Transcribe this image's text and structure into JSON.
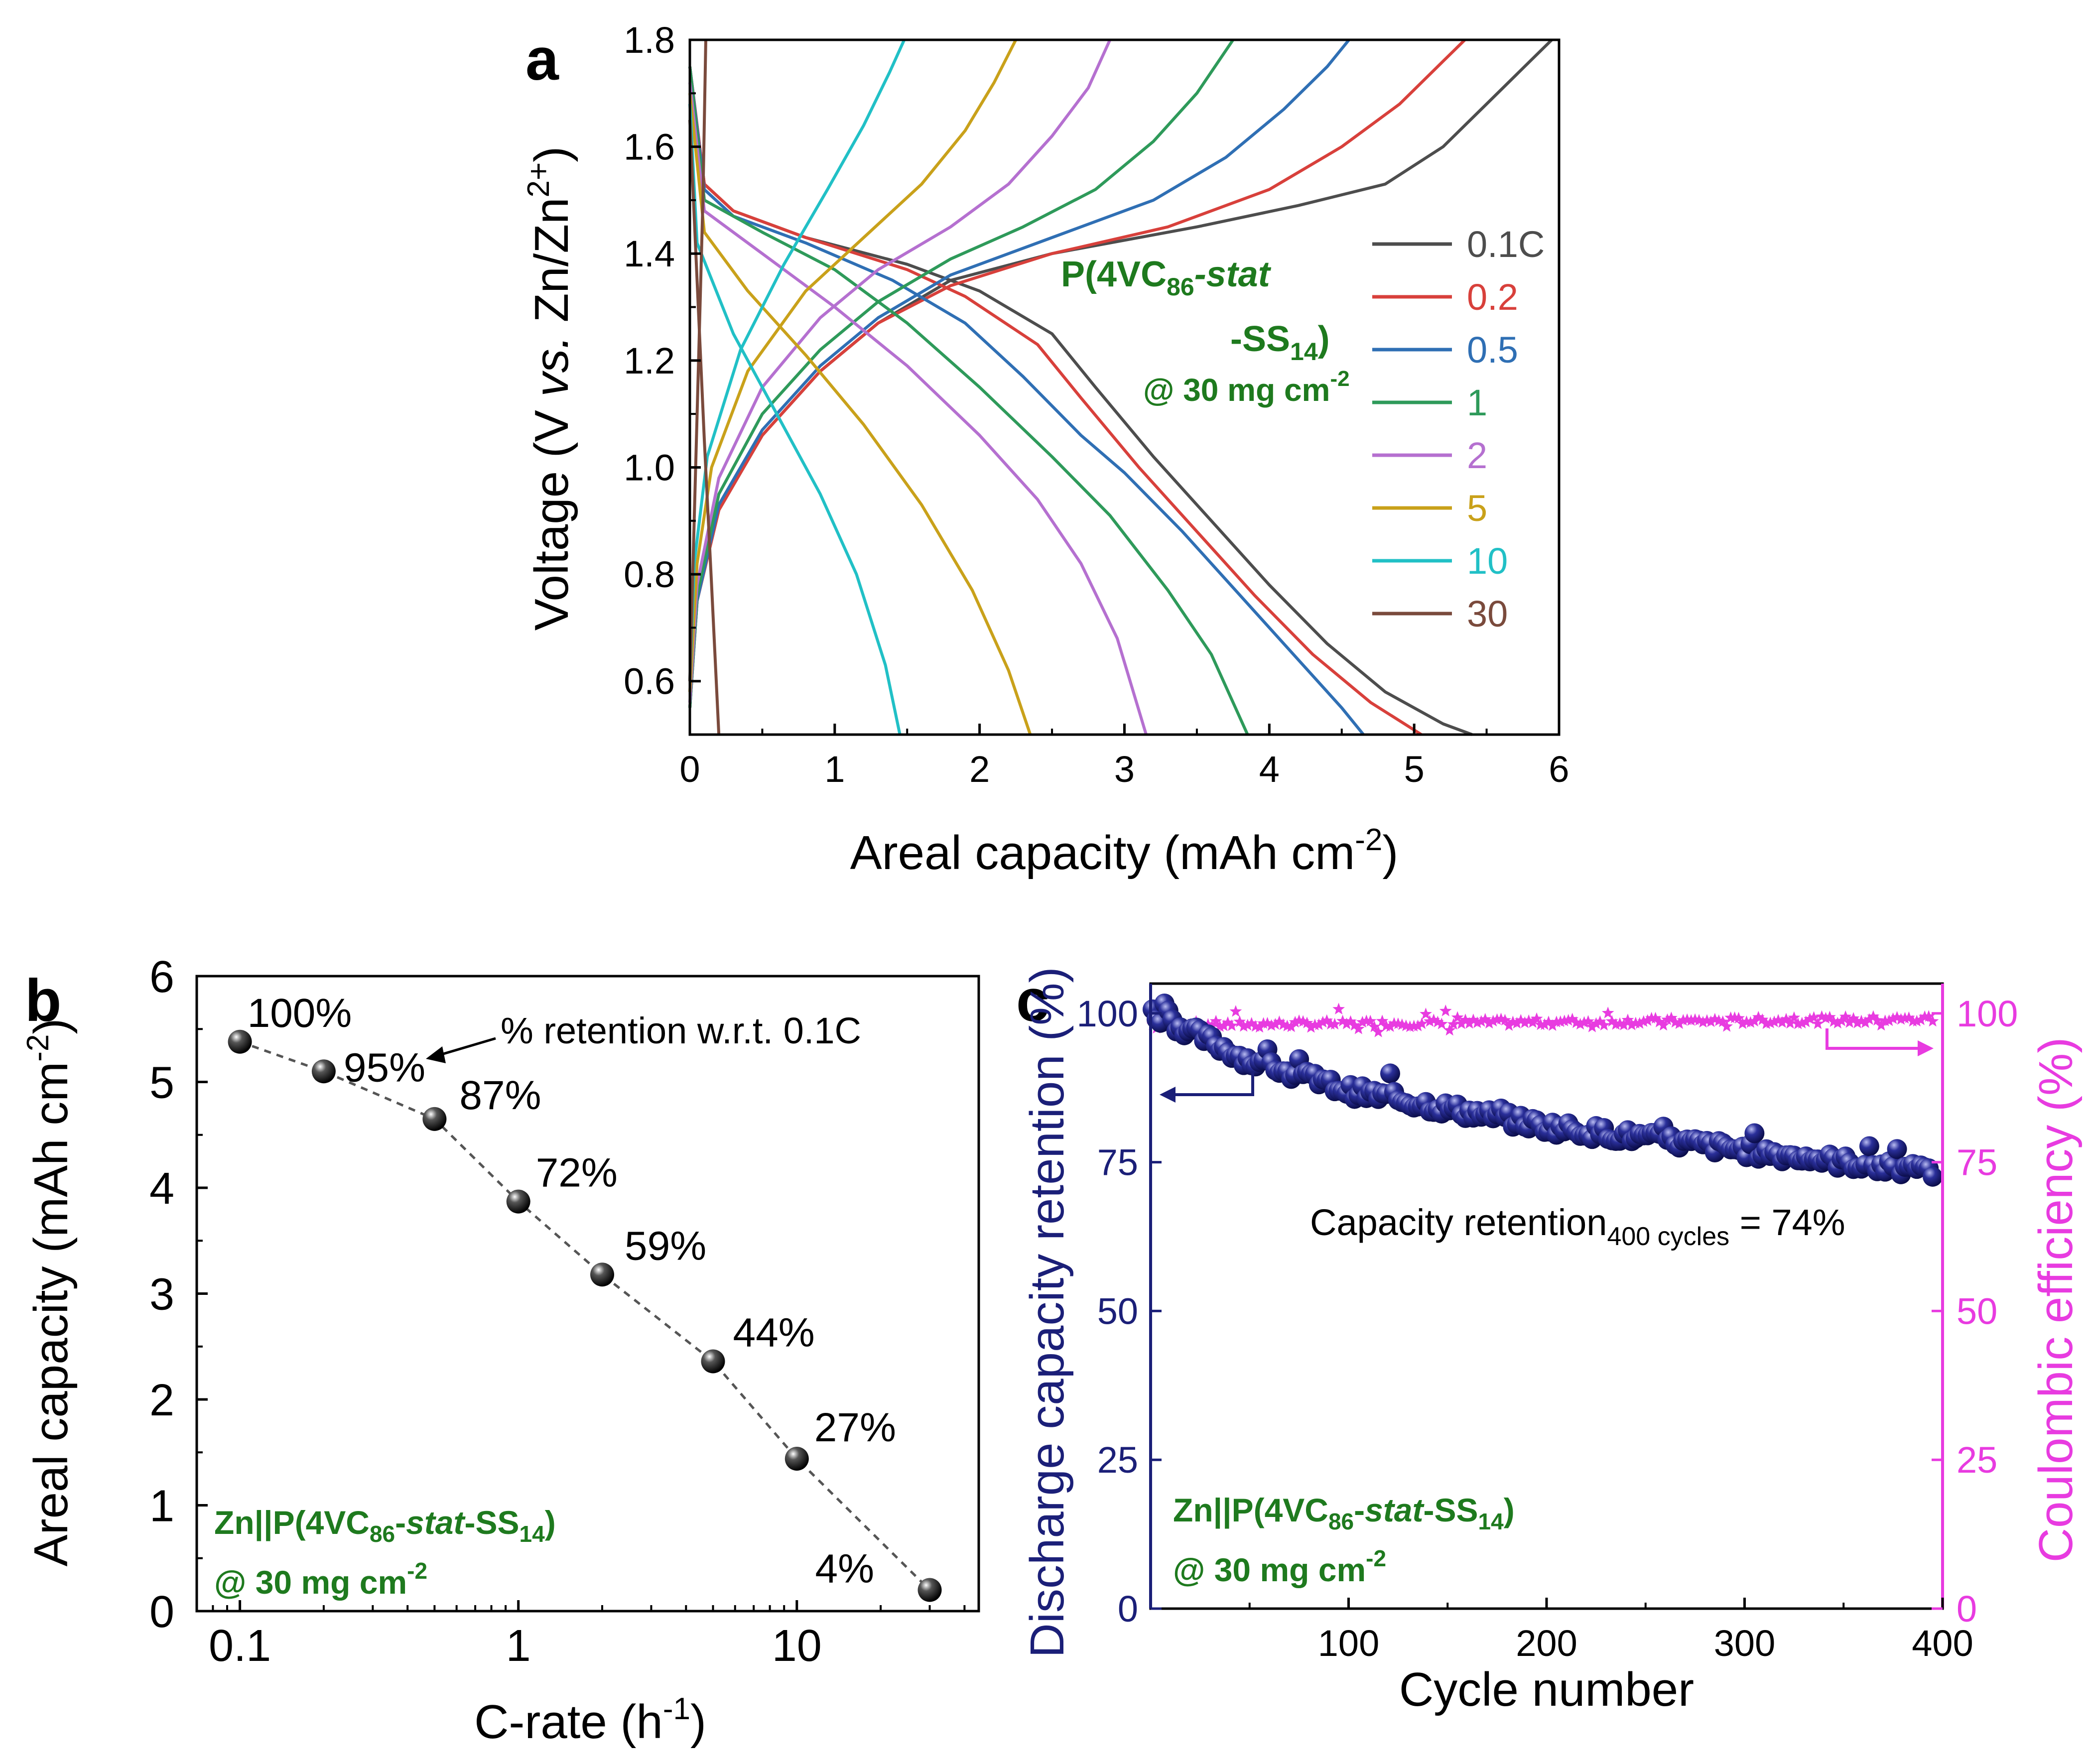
{
  "colors": {
    "c01": "#4d4d4d",
    "c02": "#d8403b",
    "c05": "#2f6fb4",
    "c1": "#2e9a5a",
    "c2": "#b570d0",
    "c5": "#c9a11a",
    "c10": "#21c0c6",
    "c30": "#7a4a3c",
    "green": "#1e7a1e",
    "navy": "#1b1f78",
    "magenta": "#e83be0"
  },
  "chart_data": [
    {
      "type": "line",
      "panel_label": "a",
      "xlabel": "Areal capacity (mAh cm",
      "xlabel_sup": "-2",
      "xlabel_end": ")",
      "ylabel_pre": "Voltage (V ",
      "ylabel_it": "vs.",
      "ylabel_mid": " Zn/Zn",
      "ylabel_sup": "2+",
      "ylabel_end": ")",
      "xlim": [
        0,
        6
      ],
      "ylim": [
        0.5,
        1.8
      ],
      "xticks": [
        "0",
        "1",
        "2",
        "3",
        "4",
        "5",
        "6"
      ],
      "yticks": [
        "0.6",
        "0.8",
        "1.0",
        "1.2",
        "1.4",
        "1.6",
        "1.8"
      ],
      "annotation": {
        "line1_pre": "P(4VC",
        "line1_sub": "86",
        "line1_it": "-stat",
        "line2_pre": "-SS",
        "line2_sub": "14",
        "line2_end": ")",
        "line3_pre": "@ 30 mg cm",
        "line3_sup": "-2"
      },
      "legend_position": "right",
      "series": [
        {
          "name": "0.1C",
          "color": "#4d4d4d",
          "discharge": [
            [
              0,
              1.75
            ],
            [
              0.1,
              1.53
            ],
            [
              0.3,
              1.48
            ],
            [
              0.8,
              1.43
            ],
            [
              1.5,
              1.38
            ],
            [
              2.0,
              1.33
            ],
            [
              2.5,
              1.25
            ],
            [
              2.8,
              1.15
            ],
            [
              3.2,
              1.02
            ],
            [
              3.6,
              0.9
            ],
            [
              4.0,
              0.78
            ],
            [
              4.4,
              0.67
            ],
            [
              4.8,
              0.58
            ],
            [
              5.2,
              0.52
            ],
            [
              5.4,
              0.5
            ]
          ],
          "charge": [
            [
              0,
              0.55
            ],
            [
              0.05,
              0.75
            ],
            [
              0.2,
              0.92
            ],
            [
              0.5,
              1.06
            ],
            [
              0.9,
              1.18
            ],
            [
              1.3,
              1.27
            ],
            [
              1.8,
              1.35
            ],
            [
              2.5,
              1.4
            ],
            [
              3.5,
              1.45
            ],
            [
              4.2,
              1.49
            ],
            [
              4.8,
              1.53
            ],
            [
              5.2,
              1.6
            ],
            [
              5.5,
              1.68
            ],
            [
              5.8,
              1.76
            ],
            [
              5.95,
              1.8
            ]
          ]
        },
        {
          "name": "0.2",
          "color": "#d8403b",
          "discharge": [
            [
              0,
              1.75
            ],
            [
              0.1,
              1.53
            ],
            [
              0.3,
              1.48
            ],
            [
              0.8,
              1.43
            ],
            [
              1.5,
              1.37
            ],
            [
              1.9,
              1.32
            ],
            [
              2.4,
              1.23
            ],
            [
              2.7,
              1.13
            ],
            [
              3.1,
              1.0
            ],
            [
              3.5,
              0.88
            ],
            [
              3.9,
              0.76
            ],
            [
              4.3,
              0.65
            ],
            [
              4.7,
              0.56
            ],
            [
              5.05,
              0.5
            ]
          ],
          "charge": [
            [
              0,
              0.55
            ],
            [
              0.05,
              0.75
            ],
            [
              0.2,
              0.92
            ],
            [
              0.5,
              1.06
            ],
            [
              0.9,
              1.18
            ],
            [
              1.3,
              1.27
            ],
            [
              1.8,
              1.34
            ],
            [
              2.5,
              1.4
            ],
            [
              3.3,
              1.45
            ],
            [
              4.0,
              1.52
            ],
            [
              4.5,
              1.6
            ],
            [
              4.9,
              1.68
            ],
            [
              5.2,
              1.76
            ],
            [
              5.35,
              1.8
            ]
          ]
        },
        {
          "name": "0.5",
          "color": "#2f6fb4",
          "discharge": [
            [
              0,
              1.75
            ],
            [
              0.1,
              1.52
            ],
            [
              0.3,
              1.47
            ],
            [
              0.8,
              1.42
            ],
            [
              1.4,
              1.35
            ],
            [
              1.9,
              1.27
            ],
            [
              2.3,
              1.17
            ],
            [
              2.7,
              1.06
            ],
            [
              3.0,
              0.99
            ],
            [
              3.4,
              0.88
            ],
            [
              3.8,
              0.76
            ],
            [
              4.2,
              0.64
            ],
            [
              4.5,
              0.55
            ],
            [
              4.65,
              0.5
            ]
          ],
          "charge": [
            [
              0,
              0.55
            ],
            [
              0.05,
              0.75
            ],
            [
              0.2,
              0.93
            ],
            [
              0.5,
              1.07
            ],
            [
              0.9,
              1.19
            ],
            [
              1.3,
              1.28
            ],
            [
              1.8,
              1.36
            ],
            [
              2.5,
              1.43
            ],
            [
              3.2,
              1.5
            ],
            [
              3.7,
              1.58
            ],
            [
              4.1,
              1.67
            ],
            [
              4.4,
              1.75
            ],
            [
              4.55,
              1.8
            ]
          ]
        },
        {
          "name": "1",
          "color": "#2e9a5a",
          "discharge": [
            [
              0,
              1.75
            ],
            [
              0.1,
              1.5
            ],
            [
              0.5,
              1.44
            ],
            [
              1.0,
              1.37
            ],
            [
              1.5,
              1.27
            ],
            [
              2.0,
              1.15
            ],
            [
              2.5,
              1.02
            ],
            [
              2.9,
              0.91
            ],
            [
              3.3,
              0.77
            ],
            [
              3.6,
              0.65
            ],
            [
              3.85,
              0.5
            ]
          ],
          "charge": [
            [
              0,
              0.55
            ],
            [
              0.05,
              0.76
            ],
            [
              0.2,
              0.95
            ],
            [
              0.5,
              1.1
            ],
            [
              0.9,
              1.22
            ],
            [
              1.3,
              1.31
            ],
            [
              1.8,
              1.39
            ],
            [
              2.3,
              1.45
            ],
            [
              2.8,
              1.52
            ],
            [
              3.2,
              1.61
            ],
            [
              3.5,
              1.7
            ],
            [
              3.75,
              1.8
            ]
          ]
        },
        {
          "name": "2",
          "color": "#b570d0",
          "discharge": [
            [
              0,
              1.72
            ],
            [
              0.1,
              1.48
            ],
            [
              0.5,
              1.4
            ],
            [
              1.0,
              1.3
            ],
            [
              1.5,
              1.19
            ],
            [
              2.0,
              1.06
            ],
            [
              2.4,
              0.94
            ],
            [
              2.7,
              0.82
            ],
            [
              2.95,
              0.68
            ],
            [
              3.15,
              0.5
            ]
          ],
          "charge": [
            [
              0,
              0.56
            ],
            [
              0.05,
              0.78
            ],
            [
              0.2,
              0.98
            ],
            [
              0.5,
              1.15
            ],
            [
              0.9,
              1.28
            ],
            [
              1.3,
              1.37
            ],
            [
              1.8,
              1.45
            ],
            [
              2.2,
              1.53
            ],
            [
              2.5,
              1.62
            ],
            [
              2.75,
              1.71
            ],
            [
              2.9,
              1.8
            ]
          ]
        },
        {
          "name": "5",
          "color": "#c9a11a",
          "discharge": [
            [
              0,
              1.7
            ],
            [
              0.1,
              1.44
            ],
            [
              0.4,
              1.33
            ],
            [
              0.8,
              1.21
            ],
            [
              1.2,
              1.08
            ],
            [
              1.6,
              0.93
            ],
            [
              1.95,
              0.77
            ],
            [
              2.2,
              0.62
            ],
            [
              2.35,
              0.5
            ]
          ],
          "charge": [
            [
              0,
              0.58
            ],
            [
              0.05,
              0.82
            ],
            [
              0.15,
              1.0
            ],
            [
              0.4,
              1.18
            ],
            [
              0.8,
              1.33
            ],
            [
              1.2,
              1.43
            ],
            [
              1.6,
              1.53
            ],
            [
              1.9,
              1.63
            ],
            [
              2.1,
              1.72
            ],
            [
              2.25,
              1.8
            ]
          ]
        },
        {
          "name": "10",
          "color": "#21c0c6",
          "discharge": [
            [
              0,
              1.68
            ],
            [
              0.05,
              1.42
            ],
            [
              0.3,
              1.25
            ],
            [
              0.6,
              1.1
            ],
            [
              0.9,
              0.95
            ],
            [
              1.15,
              0.8
            ],
            [
              1.35,
              0.63
            ],
            [
              1.45,
              0.5
            ]
          ],
          "charge": [
            [
              0,
              0.6
            ],
            [
              0.03,
              0.82
            ],
            [
              0.12,
              1.02
            ],
            [
              0.35,
              1.22
            ],
            [
              0.65,
              1.38
            ],
            [
              0.95,
              1.52
            ],
            [
              1.2,
              1.64
            ],
            [
              1.38,
              1.74
            ],
            [
              1.48,
              1.8
            ]
          ]
        },
        {
          "name": "30",
          "color": "#7a4a3c",
          "discharge": [
            [
              0,
              1.65
            ],
            [
              0.05,
              1.35
            ],
            [
              0.1,
              1.05
            ],
            [
              0.15,
              0.78
            ],
            [
              0.2,
              0.5
            ]
          ],
          "charge": [
            [
              0,
              0.6
            ],
            [
              0.03,
              0.9
            ],
            [
              0.06,
              1.2
            ],
            [
              0.09,
              1.5
            ],
            [
              0.11,
              1.8
            ]
          ]
        }
      ]
    },
    {
      "type": "scatter",
      "panel_label": "b",
      "xlabel": "C-rate (h",
      "xlabel_sup": "-1",
      "xlabel_end": ")",
      "ylabel": "Areal capacity (mAh cm",
      "ylabel_sup": "-2",
      "ylabel_end": ")",
      "xscale": "log",
      "xlim": [
        0.07,
        45
      ],
      "ylim": [
        0,
        6
      ],
      "xticks": [
        "0.1",
        "1",
        "10"
      ],
      "yticks": [
        "0",
        "1",
        "2",
        "3",
        "4",
        "5",
        "6"
      ],
      "x": [
        0.1,
        0.2,
        0.5,
        1,
        2,
        5,
        10,
        30
      ],
      "y": [
        5.38,
        5.1,
        4.65,
        3.87,
        3.18,
        2.36,
        1.44,
        0.2
      ],
      "labels": [
        "100%",
        "95%",
        "87%",
        "72%",
        "59%",
        "44%",
        "27%",
        "4%"
      ],
      "annotation": "% retention w.r.t. 0.1C",
      "note": {
        "line1_pre": "Zn||P(4VC",
        "line1_sub": "86",
        "line1_mid": "-",
        "line1_it": "stat",
        "line1_mid2": "-SS",
        "line1_sub2": "14",
        "line1_end": ")",
        "line2_pre": "@ 30 mg cm",
        "line2_sup": "-2"
      }
    },
    {
      "type": "scatter",
      "panel_label": "c",
      "xlabel": "Cycle number",
      "ylabel_left": "Discharge capacity retention (%)",
      "ylabel_right": "Coulombic efficiency (%)",
      "xlim": [
        0,
        400
      ],
      "ylim": [
        0,
        105
      ],
      "xticks": [
        "100",
        "200",
        "300",
        "400"
      ],
      "yticks": [
        "0",
        "25",
        "50",
        "75",
        "100"
      ],
      "series": [
        {
          "name": "Discharge capacity retention",
          "axis": "left",
          "color": "#1b1f78",
          "trend": [
            [
              1,
              100
            ],
            [
              20,
              97
            ],
            [
              50,
              92
            ],
            [
              100,
              87
            ],
            [
              150,
              84
            ],
            [
              200,
              81
            ],
            [
              250,
              79
            ],
            [
              300,
              77
            ],
            [
              350,
              75
            ],
            [
              400,
              73
            ]
          ]
        },
        {
          "name": "Coulombic efficiency",
          "axis": "right",
          "color": "#e83be0",
          "trend": [
            [
              1,
              98
            ],
            [
              400,
              99
            ]
          ]
        }
      ],
      "annotation_pre": "Capacity retention",
      "annotation_sub": "400 cycles",
      "annotation_end": "  =  74%",
      "note": {
        "line1_pre": "Zn||P(4VC",
        "line1_sub": "86",
        "line1_mid": "-",
        "line1_it": "stat",
        "line1_mid2": "-SS",
        "line1_sub2": "14",
        "line1_end": ")",
        "line2_pre": "@ 30 mg cm",
        "line2_sup": "-2"
      }
    }
  ]
}
